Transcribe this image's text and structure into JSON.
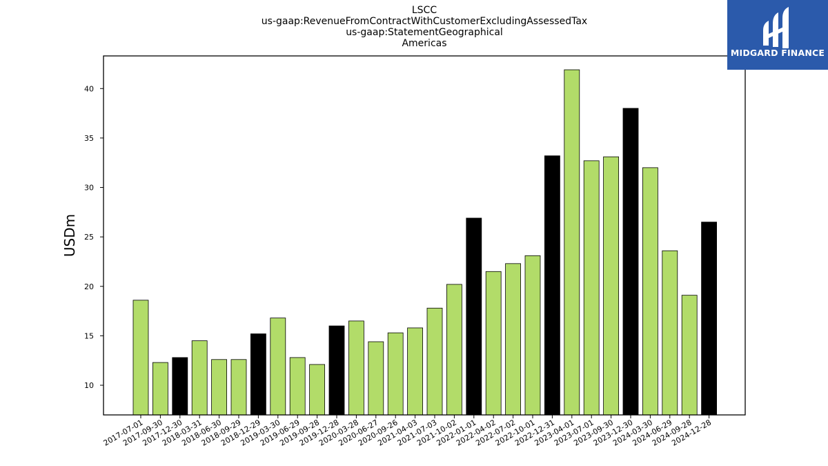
{
  "titles": {
    "line1": "LSCC",
    "line2": "us-gaap:RevenueFromContractWithCustomerExcludingAssessedTax",
    "line3": "us-gaap:StatementGeographical",
    "line4": "Americas"
  },
  "logo": {
    "text": "MIDGARD FINANCE",
    "icon": "midgard-logo-icon",
    "background": "#2b5aab"
  },
  "colors": {
    "bar_regular": "#b2dc69",
    "bar_fiscal_year_end": "#000000",
    "edge": "#000000"
  },
  "chart_data": {
    "type": "bar",
    "title": "",
    "xlabel": "",
    "ylabel": "USDm",
    "ylim": [
      7,
      43.3
    ],
    "yticks": [
      10,
      15,
      20,
      25,
      30,
      35,
      40
    ],
    "grid": false,
    "categories": [
      "2017-07-01",
      "2017-09-30",
      "2017-12-30",
      "2018-03-31",
      "2018-06-30",
      "2018-09-29",
      "2018-12-29",
      "2019-03-30",
      "2019-06-29",
      "2019-09-28",
      "2019-12-28",
      "2020-03-28",
      "2020-06-27",
      "2020-09-26",
      "2021-04-03",
      "2021-07-03",
      "2021-10-02",
      "2022-01-01",
      "2022-04-02",
      "2022-07-02",
      "2022-10-01",
      "2022-12-31",
      "2023-04-01",
      "2023-07-01",
      "2023-09-30",
      "2023-12-30",
      "2024-03-30",
      "2024-06-29",
      "2024-09-28",
      "2024-12-28"
    ],
    "values": [
      18.6,
      12.3,
      12.8,
      14.5,
      12.6,
      12.6,
      15.2,
      16.8,
      12.8,
      12.1,
      16.0,
      16.5,
      14.4,
      15.3,
      15.8,
      17.8,
      20.2,
      26.9,
      21.5,
      22.3,
      23.1,
      33.2,
      41.9,
      32.7,
      33.1,
      38.0,
      32.0,
      23.6,
      19.1,
      26.5
    ],
    "highlight": [
      false,
      false,
      true,
      false,
      false,
      false,
      true,
      false,
      false,
      false,
      true,
      false,
      false,
      false,
      false,
      false,
      false,
      true,
      false,
      false,
      false,
      true,
      false,
      false,
      false,
      true,
      false,
      false,
      false,
      true
    ]
  }
}
